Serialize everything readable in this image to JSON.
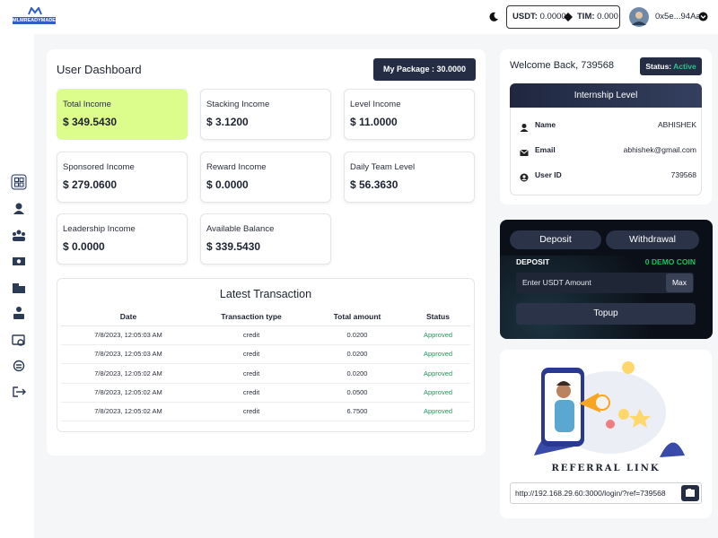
{
  "header": {
    "logo": "MLMREADYMADE",
    "usdt_label": "USDT:",
    "usdt_value": "0.0000",
    "tim_label": "TIM:",
    "tim_value": "0.000",
    "wallet": "0x5e...94Aa"
  },
  "dashboard": {
    "title": "User Dashboard",
    "package": "My Package : 30.0000",
    "cards": [
      {
        "label": "Total Income",
        "value": "$ 349.5430"
      },
      {
        "label": "Stacking Income",
        "value": "$ 3.1200"
      },
      {
        "label": "Level Income",
        "value": "$ 11.0000"
      },
      {
        "label": "Sponsored Income",
        "value": "$ 279.0600"
      },
      {
        "label": "Reward Income",
        "value": "$ 0.0000"
      },
      {
        "label": "Daily Team Level",
        "value": "$ 56.3630"
      },
      {
        "label": "Leadership Income",
        "value": "$ 0.0000"
      },
      {
        "label": "Available Balance",
        "value": "$ 339.5430"
      }
    ]
  },
  "transactions": {
    "title": "Latest Transaction",
    "columns": [
      "Date",
      "Transaction type",
      "Total amount",
      "Status"
    ],
    "rows": [
      [
        "7/8/2023, 12:05:03 AM",
        "credit",
        "0.0200",
        "Approved"
      ],
      [
        "7/8/2023, 12:05:03 AM",
        "credit",
        "0.0200",
        "Approved"
      ],
      [
        "7/8/2023, 12:05:02 AM",
        "credit",
        "0.0200",
        "Approved"
      ],
      [
        "7/8/2023, 12:05:02 AM",
        "credit",
        "0.0500",
        "Approved"
      ],
      [
        "7/8/2023, 12:05:02 AM",
        "credit",
        "6.7500",
        "Approved"
      ]
    ]
  },
  "welcome": {
    "text": "Welcome Back, 739568",
    "status_label": "Status:",
    "status_value": "Active"
  },
  "internship": {
    "title": "Internship Level",
    "rows": [
      {
        "label": "Name",
        "value": "ABHISHEK"
      },
      {
        "label": "Email",
        "value": "abhishek@gmail.com"
      },
      {
        "label": "User ID",
        "value": "739568"
      }
    ]
  },
  "wallet": {
    "tabs": [
      "Deposit",
      "Withdrawal"
    ],
    "deposit_label": "DEPOSIT",
    "coin": "0 DEMO COIN",
    "placeholder": "Enter USDT Amount",
    "max": "Max",
    "topup": "Topup"
  },
  "referral": {
    "title": "REFERRAL LINK",
    "link": "http://192.168.29.60:3000/login/?ref=739568"
  }
}
